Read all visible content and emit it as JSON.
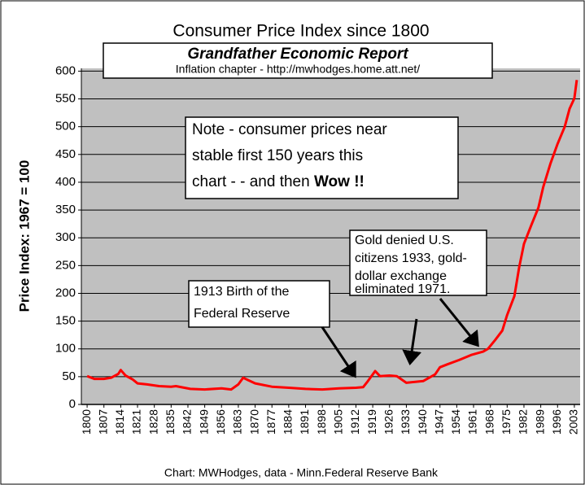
{
  "chart_data": {
    "type": "line",
    "title": "Consumer Price Index since 1800",
    "subtitle": "Grandfather Economic Report",
    "source_line": "Inflation chapter - http://mwhodges.home.att.net/",
    "ylabel": "Price Index: 1967 = 100",
    "footer": "Chart: MWHodges, data - Minn.Federal Reserve Bank",
    "note": {
      "lines": [
        "Note - consumer prices near",
        "stable first 150 years this",
        "chart - - and then "
      ],
      "emphasis": "Wow !!"
    },
    "annotations": [
      {
        "lines": [
          "1913  Birth of the",
          "Federal Reserve"
        ]
      },
      {
        "lines": [
          "Gold denied U.S.",
          "citizens 1933, gold-",
          "dollar exchange",
          "eliminated  1971."
        ]
      }
    ],
    "x": [
      1800,
      1803,
      1807,
      1810,
      1813,
      1814,
      1816,
      1819,
      1821,
      1825,
      1830,
      1835,
      1837,
      1843,
      1849,
      1856,
      1860,
      1863,
      1865,
      1867,
      1870,
      1877,
      1884,
      1891,
      1898,
      1905,
      1912,
      1915,
      1917,
      1920,
      1922,
      1926,
      1929,
      1933,
      1940,
      1945,
      1947,
      1950,
      1955,
      1960,
      1965,
      1967,
      1970,
      1973,
      1975,
      1978,
      1980,
      1982,
      1985,
      1988,
      1990,
      1993,
      1996,
      1999,
      2001,
      2003,
      2004
    ],
    "values": [
      51,
      46,
      46,
      48,
      55,
      62,
      52,
      45,
      38,
      36,
      33,
      32,
      33,
      28,
      27,
      29,
      27,
      36,
      48,
      44,
      38,
      32,
      30,
      28,
      27,
      29,
      30,
      31,
      42,
      60,
      51,
      52,
      51,
      39,
      42,
      54,
      67,
      72,
      80,
      89,
      95,
      100,
      116,
      133,
      161,
      195,
      247,
      289,
      322,
      354,
      391,
      433,
      469,
      500,
      532,
      551,
      584
    ],
    "color": "#ff0000",
    "xlim": [
      1797.6,
      2005.4
    ],
    "xticks": [
      1800,
      1807,
      1814,
      1821,
      1828,
      1835,
      1842,
      1849,
      1856,
      1863,
      1870,
      1877,
      1884,
      1891,
      1898,
      1905,
      1912,
      1919,
      1926,
      1933,
      1940,
      1947,
      1954,
      1961,
      1968,
      1975,
      1982,
      1989,
      1996,
      2003
    ],
    "ylim": [
      0,
      605
    ],
    "yticks": [
      0,
      50,
      100,
      150,
      200,
      250,
      300,
      350,
      400,
      450,
      500,
      550,
      600
    ],
    "grid": true
  }
}
